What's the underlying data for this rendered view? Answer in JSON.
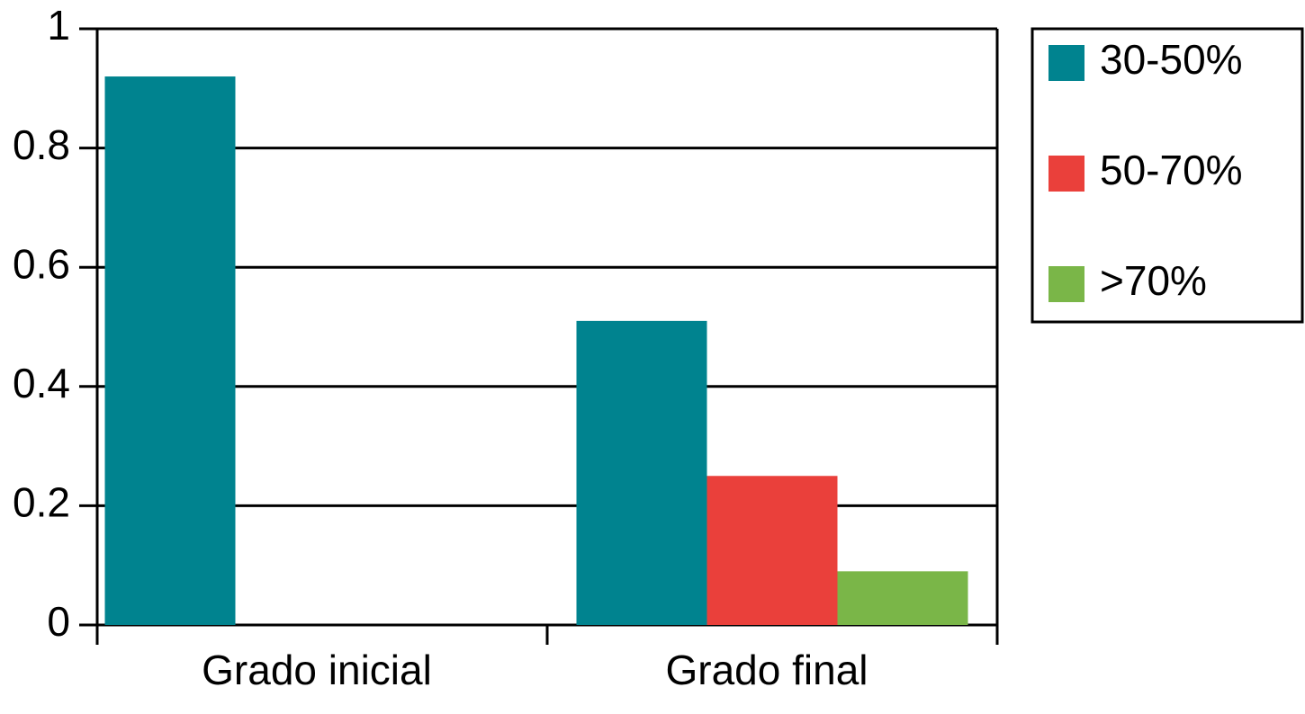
{
  "chart_data": {
    "type": "bar",
    "categories": [
      "Grado inicial",
      "Grado final"
    ],
    "series": [
      {
        "name": "30-50%",
        "color": "#00838f",
        "values": [
          0.92,
          0.51
        ]
      },
      {
        "name": "50-70%",
        "color": "#ea403b",
        "values": [
          null,
          0.25
        ]
      },
      {
        "name": ">70%",
        "color": "#7ab648",
        "values": [
          null,
          0.09
        ]
      }
    ],
    "ylim": [
      0,
      1
    ],
    "yticks": [
      0,
      0.2,
      0.4,
      0.6,
      0.8,
      1
    ],
    "grid": true,
    "legend": "right"
  }
}
